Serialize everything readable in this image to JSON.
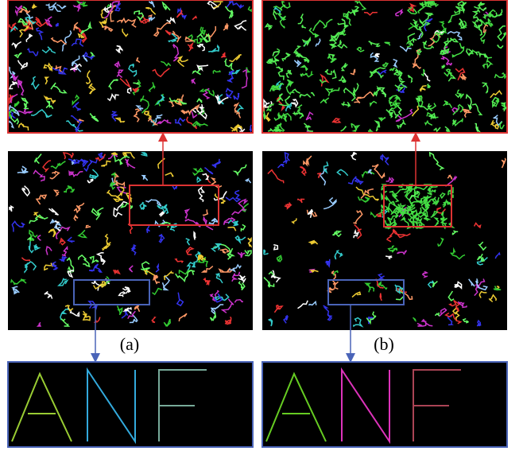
{
  "panels": {
    "a": {
      "label": "(a)"
    },
    "b": {
      "label": "(b)"
    }
  }
}
